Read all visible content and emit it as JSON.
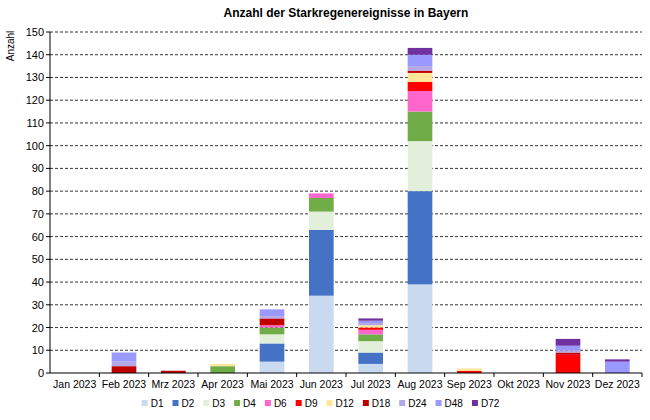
{
  "chart_data": {
    "type": "bar",
    "title": "Anzahl der Starkregenereignisse in Bayern",
    "y_label": "Anzahl",
    "stacked": true,
    "grid": true,
    "legend": "bottom",
    "categories": [
      "Jan 2023",
      "Feb 2023",
      "Mrz 2023",
      "Apr 2023",
      "Mai 2023",
      "Jun 2023",
      "Jul 2023",
      "Aug 2023",
      "Sep 2023",
      "Okt 2023",
      "Nov 2023",
      "Dez 2023"
    ],
    "ylim": [
      0,
      150
    ],
    "yticks": [
      0,
      10,
      20,
      30,
      40,
      50,
      60,
      70,
      80,
      90,
      100,
      110,
      120,
      130,
      140,
      150
    ],
    "series": [
      {
        "name": "D1",
        "color": "#c9d9ef",
        "values": [
          0,
          0,
          0,
          0,
          5,
          34,
          4,
          39,
          0,
          0,
          0,
          0
        ]
      },
      {
        "name": "D2",
        "color": "#4472c4",
        "values": [
          0,
          0,
          0,
          0,
          8,
          29,
          5,
          41,
          0,
          0,
          0,
          0
        ]
      },
      {
        "name": "D3",
        "color": "#e2efda",
        "values": [
          0,
          0,
          0,
          0,
          4,
          8,
          5,
          22,
          0,
          0,
          0,
          0
        ]
      },
      {
        "name": "D4",
        "color": "#70ad47",
        "values": [
          0,
          0,
          0,
          3,
          3,
          6,
          3,
          13,
          0,
          0,
          0,
          0
        ]
      },
      {
        "name": "D6",
        "color": "#ff66cc",
        "values": [
          0,
          0,
          0,
          0,
          1,
          2,
          2,
          9,
          0,
          0,
          0,
          0
        ]
      },
      {
        "name": "D9",
        "color": "#ff0000",
        "values": [
          0,
          0,
          0,
          0,
          0,
          0,
          1,
          4,
          1,
          0,
          8,
          0
        ]
      },
      {
        "name": "D12",
        "color": "#ffe699",
        "values": [
          0,
          0,
          0,
          1,
          0,
          0,
          1,
          4,
          1,
          0,
          0,
          0
        ]
      },
      {
        "name": "D18",
        "color": "#c00000",
        "values": [
          0,
          3,
          1,
          0,
          3,
          0,
          0,
          1,
          0,
          0,
          1,
          0
        ]
      },
      {
        "name": "D24",
        "color": "#b4a7e5",
        "values": [
          0,
          2,
          0,
          0,
          1,
          0,
          1,
          2,
          0,
          0,
          1,
          0
        ]
      },
      {
        "name": "D48",
        "color": "#9999ff",
        "values": [
          0,
          4,
          0,
          0,
          3,
          0,
          1,
          5,
          0,
          0,
          2,
          5
        ]
      },
      {
        "name": "D72",
        "color": "#7030a0",
        "values": [
          0,
          0,
          0,
          0,
          0,
          0,
          1,
          3,
          0,
          0,
          3,
          1
        ]
      }
    ]
  }
}
